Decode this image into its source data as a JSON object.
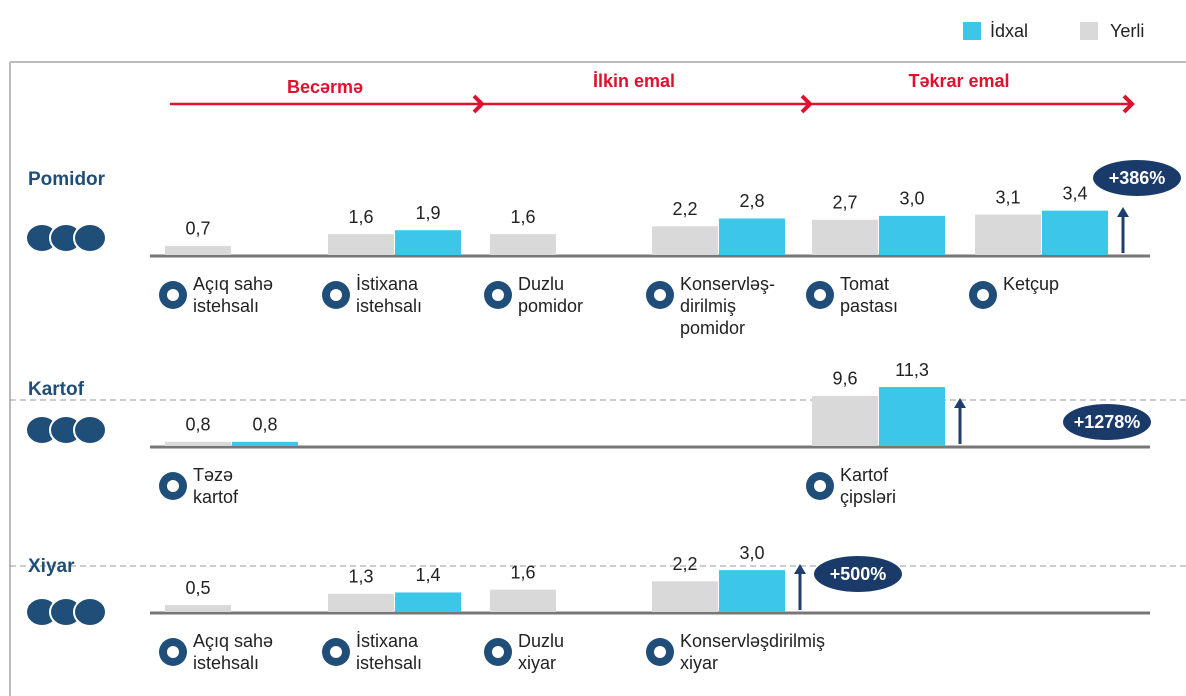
{
  "chart_data": {
    "type": "bar",
    "series": [
      {
        "name": "Yerli",
        "color": "#d9d9d9"
      },
      {
        "name": "İdxal",
        "color": "#3cc6e8"
      }
    ],
    "stages": [
      "Becərmə",
      "İlkin emal",
      "Təkrar emal"
    ],
    "rows": [
      {
        "name": "Pomidor",
        "ylim": [
          0,
          4.6
        ],
        "change": "+386%",
        "products": [
          {
            "label": "Açıq sahə\nistehsalı",
            "values": [
              0.7,
              null
            ],
            "value_labels": [
              "0,7",
              null
            ]
          },
          {
            "label": "İstixana\nistehsalı",
            "values": [
              1.6,
              1.9
            ],
            "value_labels": [
              "1,6",
              "1,9"
            ]
          },
          {
            "label": "Duzlu\npomidor",
            "values": [
              1.6,
              null
            ],
            "value_labels": [
              "1,6",
              null
            ]
          },
          {
            "label": "Konservləş-\ndirilmiş\npomidor",
            "values": [
              2.2,
              2.8
            ],
            "value_labels": [
              "2,2",
              "2,8"
            ]
          },
          {
            "label": "Tomat\npastası",
            "values": [
              2.7,
              3.0
            ],
            "value_labels": [
              "2,7",
              "3,0"
            ]
          },
          {
            "label": "Ketçup",
            "values": [
              3.1,
              3.4
            ],
            "value_labels": [
              "3,1",
              "3,4"
            ]
          }
        ]
      },
      {
        "name": "Kartof",
        "ylim": [
          0,
          11.5
        ],
        "change": "+1278%",
        "products": [
          {
            "label": "Təzə\nkartof",
            "values": [
              0.8,
              0.8
            ],
            "value_labels": [
              "0,8",
              "0,8"
            ]
          },
          {
            "label": null,
            "values": [
              null,
              null
            ],
            "value_labels": [
              null,
              null
            ]
          },
          {
            "label": null,
            "values": [
              null,
              null
            ],
            "value_labels": [
              null,
              null
            ]
          },
          {
            "label": null,
            "values": [
              null,
              null
            ],
            "value_labels": [
              null,
              null
            ]
          },
          {
            "label": "Kartof\nçipsləri",
            "values": [
              9.6,
              11.3
            ],
            "value_labels": [
              "9,6",
              "11,3"
            ]
          },
          {
            "label": null,
            "values": [
              null,
              null
            ],
            "value_labels": [
              null,
              null
            ]
          }
        ]
      },
      {
        "name": "Xiyar",
        "ylim": [
          0,
          4.3
        ],
        "change": "+500%",
        "products": [
          {
            "label": "Açıq sahə\nistehsalı",
            "values": [
              0.5,
              null
            ],
            "value_labels": [
              "0,5",
              null
            ]
          },
          {
            "label": "İstixana\nistehsalı",
            "values": [
              1.3,
              1.4
            ],
            "value_labels": [
              "1,3",
              "1,4"
            ]
          },
          {
            "label": "Duzlu\nxiyar",
            "values": [
              1.6,
              null
            ],
            "value_labels": [
              "1,6",
              null
            ]
          },
          {
            "label": "Konservləşdirilmiş\nxiyar",
            "values": [
              2.2,
              3.0
            ],
            "value_labels": [
              "2,2",
              "3,0"
            ]
          }
        ]
      }
    ]
  }
}
